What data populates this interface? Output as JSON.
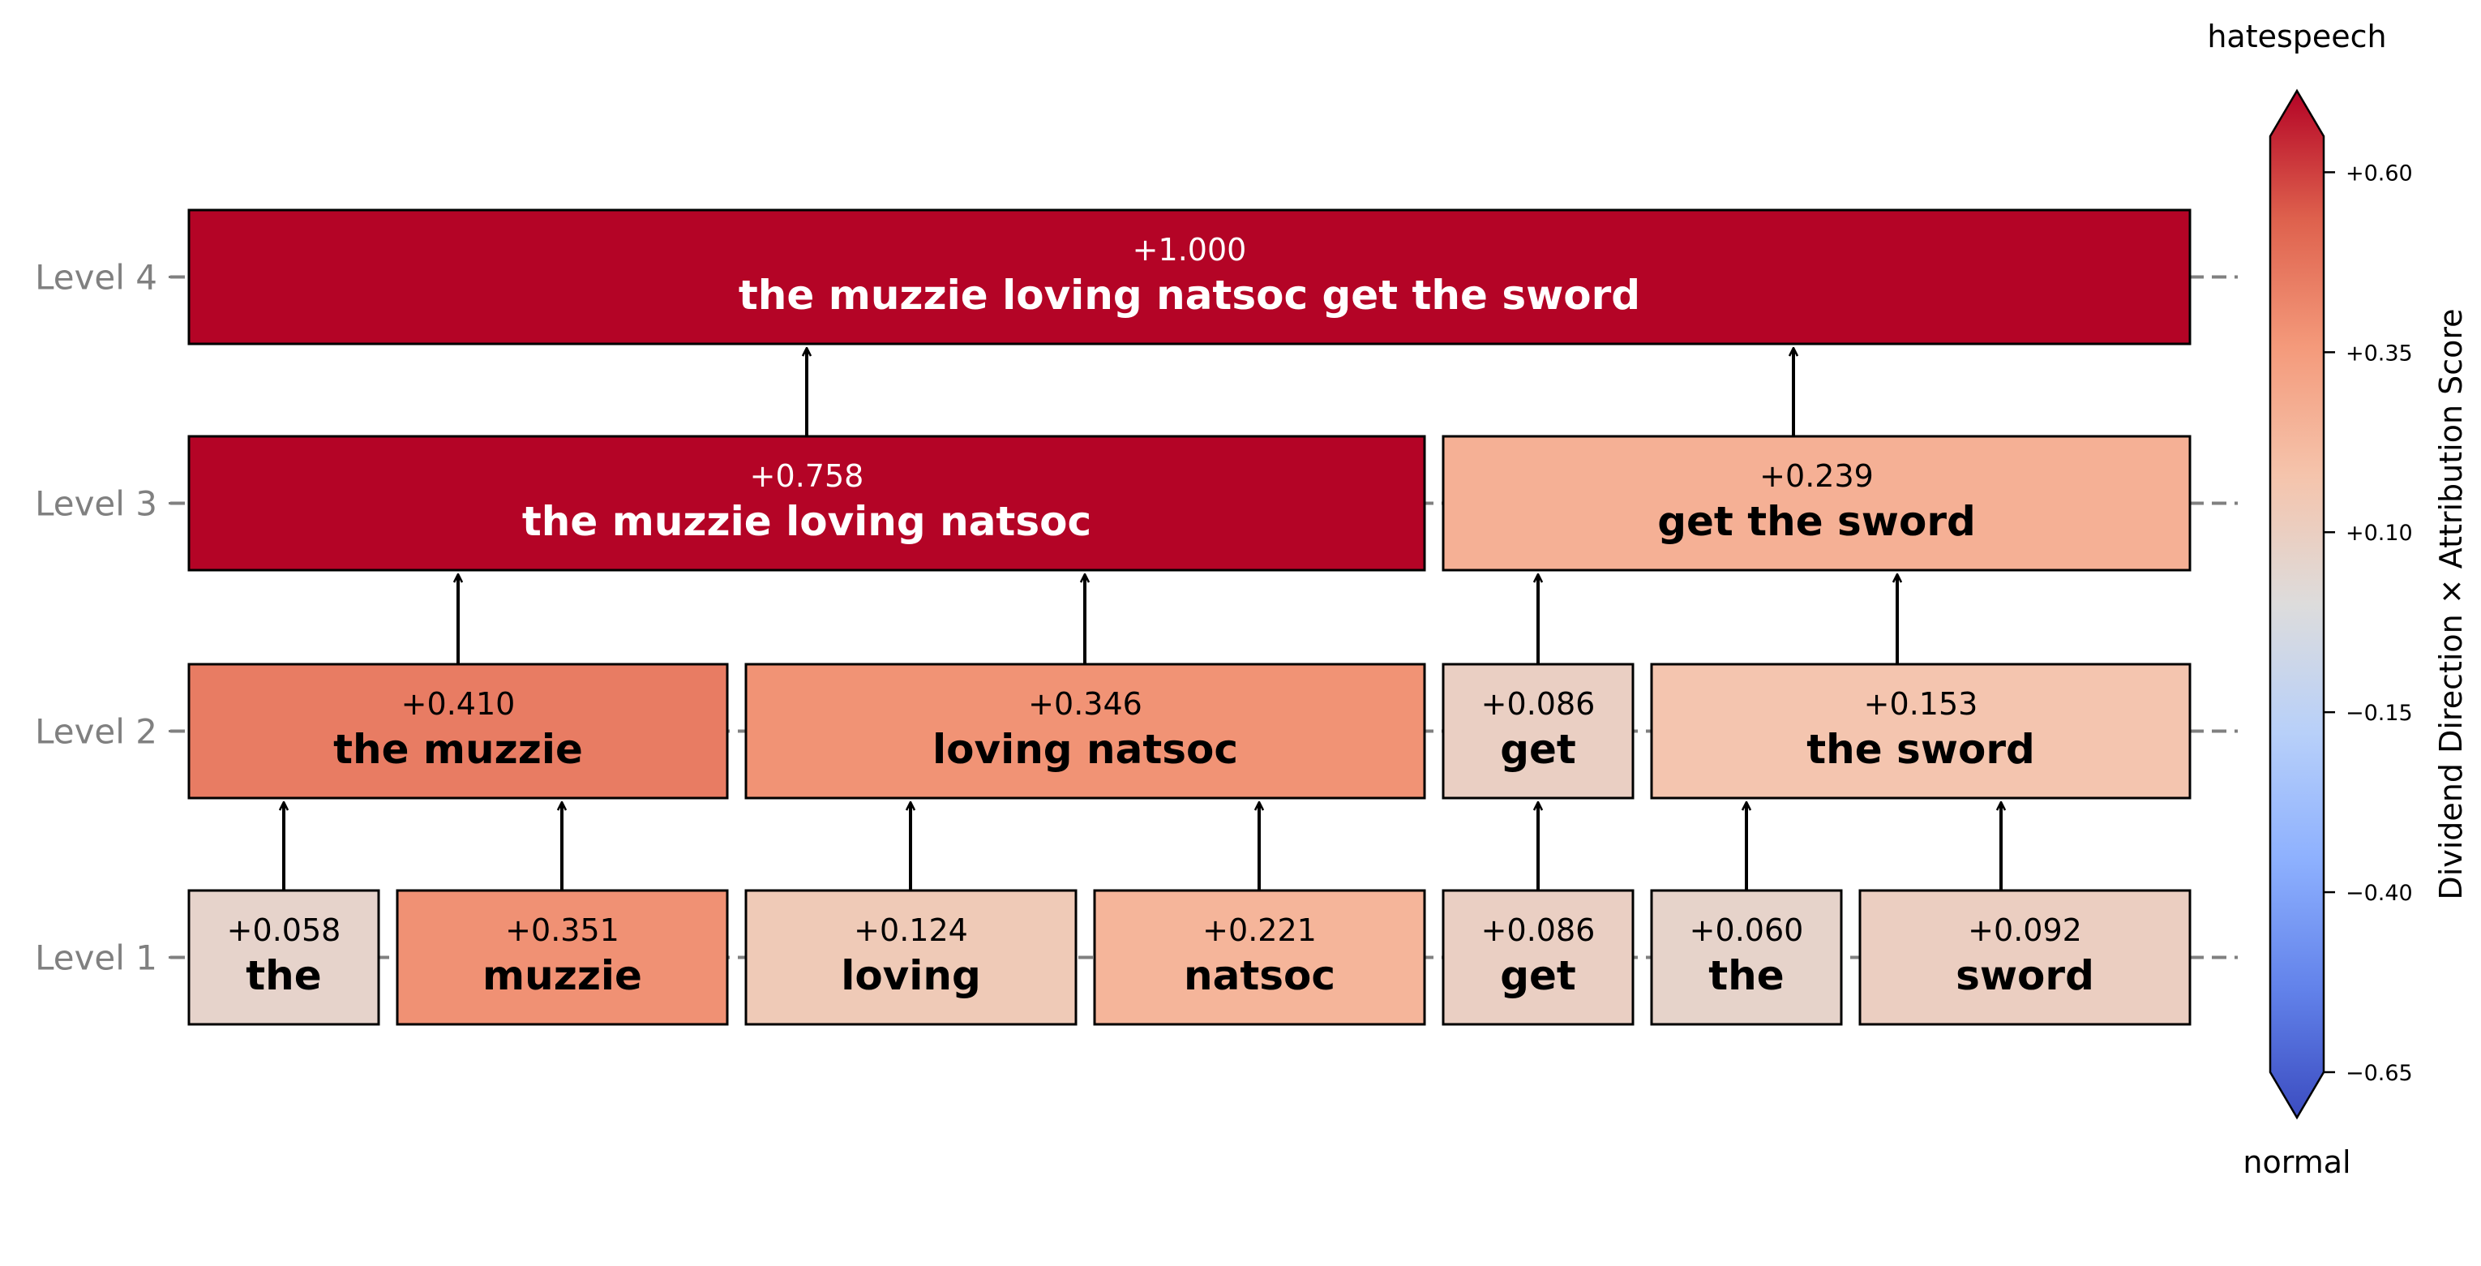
{
  "levels": [
    {
      "label": "Level 1"
    },
    {
      "label": "Level 2"
    },
    {
      "label": "Level 3"
    },
    {
      "label": "Level 4"
    }
  ],
  "nodes": [
    {
      "id": "l1-the",
      "level": 1,
      "text": "the",
      "score": "+0.058",
      "value": 0.058
    },
    {
      "id": "l1-muzzie",
      "level": 1,
      "text": "muzzie",
      "score": "+0.351",
      "value": 0.351
    },
    {
      "id": "l1-loving",
      "level": 1,
      "text": "loving",
      "score": "+0.124",
      "value": 0.124
    },
    {
      "id": "l1-natsoc",
      "level": 1,
      "text": "natsoc",
      "score": "+0.221",
      "value": 0.221
    },
    {
      "id": "l1-get",
      "level": 1,
      "text": "get",
      "score": "+0.086",
      "value": 0.086
    },
    {
      "id": "l1-the2",
      "level": 1,
      "text": "the",
      "score": "+0.060",
      "value": 0.06
    },
    {
      "id": "l1-sword",
      "level": 1,
      "text": "sword",
      "score": "+0.092",
      "value": 0.092
    },
    {
      "id": "l2-the-muzzie",
      "level": 2,
      "text": "the muzzie",
      "score": "+0.410",
      "value": 0.41
    },
    {
      "id": "l2-loving-natsoc",
      "level": 2,
      "text": "loving natsoc",
      "score": "+0.346",
      "value": 0.346
    },
    {
      "id": "l2-get",
      "level": 2,
      "text": "get",
      "score": "+0.086",
      "value": 0.086
    },
    {
      "id": "l2-the-sword",
      "level": 2,
      "text": "the sword",
      "score": "+0.153",
      "value": 0.153
    },
    {
      "id": "l3-left",
      "level": 3,
      "text": "the muzzie loving natsoc",
      "score": "+0.758",
      "value": 0.758
    },
    {
      "id": "l3-right",
      "level": 3,
      "text": "get the sword",
      "score": "+0.239",
      "value": 0.239
    },
    {
      "id": "l4-root",
      "level": 4,
      "text": "the muzzie loving natsoc get the sword",
      "score": "+1.000",
      "value": 1.0
    }
  ],
  "edges": [
    [
      "l1-the",
      "l2-the-muzzie"
    ],
    [
      "l1-muzzie",
      "l2-the-muzzie"
    ],
    [
      "l1-loving",
      "l2-loving-natsoc"
    ],
    [
      "l1-natsoc",
      "l2-loving-natsoc"
    ],
    [
      "l1-get",
      "l2-get"
    ],
    [
      "l1-the2",
      "l2-the-sword"
    ],
    [
      "l1-sword",
      "l2-the-sword"
    ],
    [
      "l2-the-muzzie",
      "l3-left"
    ],
    [
      "l2-loving-natsoc",
      "l3-left"
    ],
    [
      "l2-get",
      "l3-right"
    ],
    [
      "l2-the-sword",
      "l3-right"
    ],
    [
      "l3-left",
      "l4-root"
    ],
    [
      "l3-right",
      "l4-root"
    ]
  ],
  "colorbar": {
    "top_label": "hatespeech",
    "bottom_label": "normal",
    "axis_label": "Dividend Direction × Attribution Score",
    "range": [
      -0.65,
      0.65
    ],
    "ticks": [
      {
        "value": 0.6,
        "label": "+0.60"
      },
      {
        "value": 0.35,
        "label": "+0.35"
      },
      {
        "value": 0.1,
        "label": "+0.10"
      },
      {
        "value": -0.15,
        "label": "−0.15"
      },
      {
        "value": -0.4,
        "label": "−0.40"
      },
      {
        "value": -0.65,
        "label": "−0.65"
      }
    ]
  }
}
